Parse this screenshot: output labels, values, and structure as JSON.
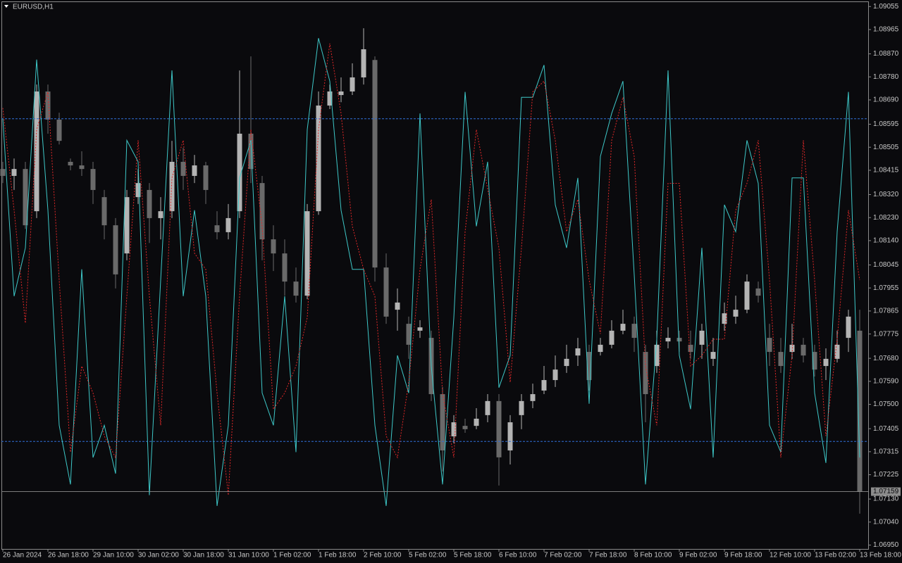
{
  "chart_data": {
    "type": "candlestick",
    "title": "EURUSD,H1",
    "categories": [
      "26 Jan 2024",
      null,
      null,
      null,
      "26 Jan 18:00",
      null,
      null,
      null,
      "29 Jan 10:00",
      null,
      null,
      null,
      "30 Jan 02:00",
      null,
      null,
      null,
      "30 Jan 18:00",
      null,
      null,
      null,
      "31 Jan 10:00",
      null,
      null,
      null,
      "1 Feb 02:00",
      null,
      null,
      null,
      "1 Feb 18:00",
      null,
      null,
      null,
      "2 Feb 10:00",
      null,
      null,
      null,
      "5 Feb 02:00",
      null,
      null,
      null,
      "5 Feb 18:00",
      null,
      null,
      null,
      "6 Feb 10:00",
      null,
      null,
      null,
      "7 Feb 02:00",
      null,
      null,
      null,
      "7 Feb 18:00",
      null,
      null,
      null,
      "8 Feb 10:00",
      null,
      null,
      null,
      "9 Feb 02:00",
      null,
      null,
      null,
      "9 Feb 18:00",
      null,
      null,
      null,
      "12 Feb 10:00",
      null,
      null,
      null,
      "13 Feb 02:00",
      null,
      null,
      null,
      "13 Feb 18:00"
    ],
    "open": [
      1.0842,
      1.08393,
      1.0842,
      1.08255,
      1.08723,
      1.08613,
      1.08448,
      1.08434,
      1.0842,
      1.0831,
      1.082,
      1.0809,
      1.0831,
      1.08338,
      1.08228,
      1.08255,
      1.08448,
      1.08393,
      1.08434,
      1.082,
      1.08173,
      1.08255,
      1.08558,
      1.08365,
      1.08145,
      1.0809,
      1.0798,
      1.07925,
      1.08255,
      1.08668,
      1.08709,
      1.08723,
      1.08778,
      1.08846,
      1.08035,
      1.0787,
      1.07815,
      1.07788,
      1.0776,
      1.0754,
      1.07375,
      1.07416,
      1.07416,
      1.07458,
      1.07513,
      1.0732,
      1.07458,
      1.07513,
      1.07554,
      1.07595,
      1.0765,
      1.07691,
      1.07705,
      1.07705,
      1.07733,
      1.07788,
      1.07815,
      1.07705,
      1.0765,
      1.07746,
      1.0776,
      1.07733,
      1.07733,
      1.07678,
      1.07815,
      1.07843,
      1.0787,
      1.07953,
      1.0776,
      1.07705,
      1.07705,
      1.07733,
      1.07705,
      1.0765,
      1.07678,
      1.0776,
      1.07788
    ],
    "high": [
      1.08448,
      1.08461,
      1.08448,
      1.0875,
      1.0875,
      1.0864,
      1.08461,
      1.08489,
      1.08448,
      1.08338,
      1.08228,
      1.08338,
      1.0842,
      1.08365,
      1.0831,
      1.0853,
      1.08503,
      1.08475,
      1.08448,
      1.08255,
      1.08283,
      1.08805,
      1.0886,
      1.08393,
      1.082,
      1.08145,
      1.08035,
      1.08283,
      1.08723,
      1.0875,
      1.08778,
      1.08833,
      1.0897,
      1.0886,
      1.0809,
      1.07953,
      1.07843,
      1.07829,
      1.07788,
      1.07568,
      1.07458,
      1.07444,
      1.07485,
      1.0754,
      1.0754,
      1.07458,
      1.0754,
      1.07581,
      1.0765,
      1.07691,
      1.07733,
      1.0776,
      1.07733,
      1.0776,
      1.07829,
      1.0787,
      1.07843,
      1.07733,
      1.07788,
      1.07801,
      1.07788,
      1.07788,
      1.07815,
      1.0776,
      1.07898,
      1.07925,
      1.08008,
      1.0798,
      1.07815,
      1.0776,
      1.07815,
      1.0776,
      1.07733,
      1.07719,
      1.07788,
      1.0787,
      1.0787
    ],
    "low": [
      1.08365,
      1.08338,
      1.08186,
      1.08228,
      1.08558,
      1.08516,
      1.08415,
      1.08393,
      1.08283,
      1.08145,
      1.07953,
      1.08063,
      1.08283,
      1.08131,
      1.08145,
      1.08228,
      1.08338,
      1.08365,
      1.08283,
      1.08145,
      1.08145,
      1.08228,
      1.08365,
      1.08063,
      1.08021,
      1.07925,
      1.07898,
      1.07911,
      1.08241,
      1.08654,
      1.08681,
      1.08709,
      1.0875,
      1.0798,
      1.07815,
      1.07788,
      1.07678,
      1.0776,
      1.07513,
      1.07238,
      1.07348,
      1.07389,
      1.07403,
      1.0743,
      1.07183,
      1.07265,
      1.07403,
      1.07485,
      1.0754,
      1.07568,
      1.07623,
      1.0765,
      1.07554,
      1.07691,
      1.07719,
      1.07774,
      1.07705,
      1.0743,
      1.07623,
      1.07719,
      1.07705,
      1.07678,
      1.07678,
      1.0765,
      1.07788,
      1.07815,
      1.07856,
      1.07898,
      1.0765,
      1.07623,
      1.07678,
      1.07664,
      1.07609,
      1.07595,
      1.07664,
      1.07705,
      1.07073
    ],
    "close": [
      1.08393,
      1.0842,
      1.082,
      1.08723,
      1.08613,
      1.0853,
      1.08434,
      1.0842,
      1.08338,
      1.082,
      1.08008,
      1.0831,
      1.08365,
      1.08228,
      1.08255,
      1.08448,
      1.08393,
      1.08434,
      1.08338,
      1.08173,
      1.08228,
      1.08558,
      1.0842,
      1.08145,
      1.0809,
      1.0798,
      1.07925,
      1.08255,
      1.08668,
      1.08723,
      1.08723,
      1.08778,
      1.08888,
      1.08035,
      1.07843,
      1.07898,
      1.07733,
      1.07801,
      1.0754,
      1.0732,
      1.0743,
      1.07403,
      1.07444,
      1.07513,
      1.07293,
      1.0743,
      1.07513,
      1.0754,
      1.07595,
      1.07636,
      1.07678,
      1.07719,
      1.07595,
      1.07733,
      1.07788,
      1.07815,
      1.0776,
      1.0754,
      1.07733,
      1.0776,
      1.07746,
      1.07705,
      1.07788,
      1.07705,
      1.07856,
      1.0787,
      1.0798,
      1.07925,
      1.07705,
      1.0765,
      1.07733,
      1.07691,
      1.07636,
      1.07678,
      1.07733,
      1.07843,
      1.07159
    ],
    "bull_color": "#b4b4b4",
    "bear_color": "#6a6a6a",
    "ylim": [
      1.06935,
      1.09075
    ],
    "yticks": [
      1.09055,
      1.08965,
      {
        "value": 1.0887,
        "label": "1.08870"
      },
      {
        "value": 1.0878,
        "label": "1.08780"
      },
      {
        "value": 1.0869,
        "label": "1.08690"
      },
      1.08595,
      1.08505,
      1.08415,
      {
        "value": 1.0832,
        "label": "1.08320"
      },
      {
        "value": 1.0823,
        "label": "1.08230"
      },
      {
        "value": 1.0814,
        "label": "1.08140"
      },
      1.08045,
      1.07955,
      1.07865,
      1.07775,
      {
        "value": 1.0768,
        "label": "1.07680"
      },
      {
        "value": 1.0759,
        "label": "1.07590"
      },
      {
        "value": 1.075,
        "label": "1.07500"
      },
      1.07405,
      1.07315,
      1.07225,
      {
        "value": 1.0713,
        "label": "1.07130"
      },
      {
        "value": 1.0704,
        "label": "1.07040"
      },
      {
        "value": 1.0695,
        "label": "1.06950"
      }
    ],
    "last_price": 1.07159,
    "last_price_color": "#8c8c8c",
    "indicator": {
      "type": "line",
      "y2lim": [
        0,
        101.7
      ],
      "levels": [
        80,
        20
      ],
      "level_color": "#2f6fd8",
      "series": [
        {
          "color": "#3ec8c8",
          "dashed": false,
          "axis": "y2",
          "values": [
            80,
            47,
            56,
            91,
            63,
            23,
            12,
            52,
            17,
            23,
            14,
            76,
            72,
            10,
            50,
            89,
            47,
            63,
            47,
            8,
            23,
            69,
            76,
            29,
            23,
            47,
            18,
            78,
            95,
            87,
            63,
            52,
            52,
            23,
            8,
            36,
            29,
            81,
            34,
            12,
            43,
            85,
            60,
            72,
            30,
            36,
            84,
            84,
            90,
            64,
            56,
            69,
            27,
            73,
            81,
            87,
            51,
            12,
            39,
            89,
            36,
            26,
            56,
            17,
            64,
            59,
            76,
            68,
            23,
            18,
            69,
            69,
            29,
            16,
            59,
            85,
            17
          ]
        },
        {
          "color": "#e02828",
          "dashed": true,
          "axis": "y2",
          "values": [
            82,
            63,
            42,
            78,
            85,
            50,
            18,
            34,
            29,
            21,
            17,
            47,
            76,
            47,
            23,
            69,
            76,
            55,
            52,
            29,
            10,
            47,
            78,
            60,
            26,
            29,
            34,
            43,
            78,
            94,
            81,
            60,
            52,
            47,
            21,
            17,
            31,
            52,
            65,
            29,
            17,
            59,
            78,
            67,
            56,
            31,
            56,
            85,
            87,
            76,
            59,
            65,
            50,
            40,
            76,
            84,
            73,
            34,
            23,
            68,
            68,
            34,
            36,
            39,
            39,
            63,
            68,
            76,
            50,
            17,
            36,
            76,
            50,
            21,
            39,
            63,
            50
          ]
        }
      ]
    }
  }
}
